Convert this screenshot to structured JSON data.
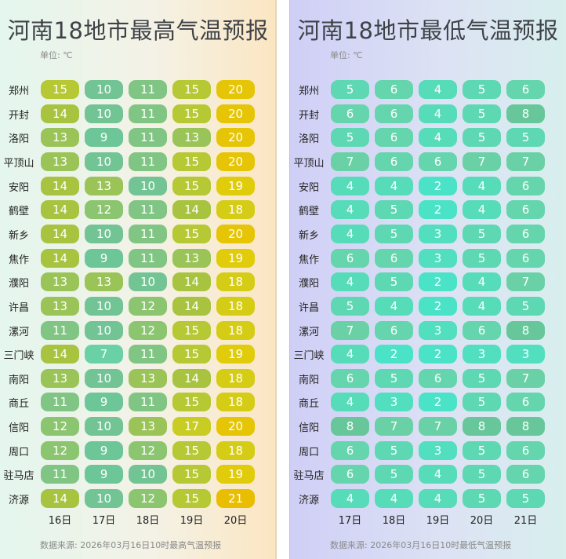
{
  "cities": [
    "郑州",
    "开封",
    "洛阳",
    "平顶山",
    "安阳",
    "鹤壁",
    "新乡",
    "焦作",
    "濮阳",
    "许昌",
    "漯河",
    "三门峡",
    "南阳",
    "商丘",
    "信阳",
    "周口",
    "驻马店",
    "济源"
  ],
  "unit_label": "单位: ℃",
  "charts": [
    {
      "id": "high",
      "title": "河南18地市最高气温预报",
      "dates": [
        "16日",
        "17日",
        "18日",
        "19日",
        "20日"
      ],
      "source": "数据来源: 2026年03月16日10时最高气温预报",
      "values": [
        [
          15,
          10,
          11,
          15,
          20
        ],
        [
          14,
          10,
          11,
          15,
          20
        ],
        [
          13,
          9,
          11,
          13,
          20
        ],
        [
          13,
          10,
          11,
          15,
          20
        ],
        [
          14,
          13,
          10,
          15,
          19
        ],
        [
          14,
          12,
          11,
          14,
          18
        ],
        [
          14,
          10,
          11,
          15,
          20
        ],
        [
          14,
          9,
          11,
          13,
          19
        ],
        [
          13,
          13,
          10,
          14,
          18
        ],
        [
          13,
          10,
          12,
          14,
          18
        ],
        [
          11,
          10,
          12,
          15,
          18
        ],
        [
          14,
          7,
          11,
          15,
          19
        ],
        [
          13,
          10,
          13,
          14,
          18
        ],
        [
          11,
          9,
          11,
          15,
          18
        ],
        [
          12,
          10,
          13,
          17,
          20
        ],
        [
          12,
          9,
          12,
          15,
          18
        ],
        [
          11,
          9,
          10,
          15,
          19
        ],
        [
          14,
          10,
          12,
          15,
          21
        ]
      ]
    },
    {
      "id": "low",
      "title": "河南18地市最低气温预报",
      "dates": [
        "17日",
        "18日",
        "19日",
        "20日",
        "21日"
      ],
      "source": "数据来源: 2026年03月16日10时最低气温预报",
      "values": [
        [
          5,
          6,
          4,
          5,
          6
        ],
        [
          6,
          6,
          4,
          5,
          8
        ],
        [
          5,
          6,
          4,
          5,
          5
        ],
        [
          7,
          6,
          6,
          7,
          7
        ],
        [
          4,
          4,
          2,
          4,
          6
        ],
        [
          4,
          5,
          2,
          4,
          6
        ],
        [
          4,
          5,
          3,
          5,
          6
        ],
        [
          6,
          6,
          3,
          5,
          6
        ],
        [
          4,
          5,
          2,
          4,
          7
        ],
        [
          5,
          4,
          2,
          4,
          5
        ],
        [
          7,
          6,
          3,
          6,
          8
        ],
        [
          4,
          2,
          2,
          3,
          3
        ],
        [
          6,
          5,
          6,
          5,
          7
        ],
        [
          4,
          3,
          2,
          5,
          6
        ],
        [
          8,
          7,
          7,
          8,
          8
        ],
        [
          6,
          5,
          3,
          5,
          6
        ],
        [
          6,
          5,
          4,
          5,
          6
        ],
        [
          4,
          4,
          4,
          5,
          5
        ]
      ]
    }
  ],
  "chart_data": [
    {
      "type": "heatmap",
      "title": "河南18地市最高气温预报",
      "unit": "℃",
      "categories": [
        "郑州",
        "开封",
        "洛阳",
        "平顶山",
        "安阳",
        "鹤壁",
        "新乡",
        "焦作",
        "濮阳",
        "许昌",
        "漯河",
        "三门峡",
        "南阳",
        "商丘",
        "信阳",
        "周口",
        "驻马店",
        "济源"
      ],
      "x": [
        "16日",
        "17日",
        "18日",
        "19日",
        "20日"
      ],
      "values": [
        [
          15,
          10,
          11,
          15,
          20
        ],
        [
          14,
          10,
          11,
          15,
          20
        ],
        [
          13,
          9,
          11,
          13,
          20
        ],
        [
          13,
          10,
          11,
          15,
          20
        ],
        [
          14,
          13,
          10,
          15,
          19
        ],
        [
          14,
          12,
          11,
          14,
          18
        ],
        [
          14,
          10,
          11,
          15,
          20
        ],
        [
          14,
          9,
          11,
          13,
          19
        ],
        [
          13,
          13,
          10,
          14,
          18
        ],
        [
          13,
          10,
          12,
          14,
          18
        ],
        [
          11,
          10,
          12,
          15,
          18
        ],
        [
          14,
          7,
          11,
          15,
          19
        ],
        [
          13,
          10,
          13,
          14,
          18
        ],
        [
          11,
          9,
          11,
          15,
          18
        ],
        [
          12,
          10,
          13,
          17,
          20
        ],
        [
          12,
          9,
          12,
          15,
          18
        ],
        [
          11,
          9,
          10,
          15,
          19
        ],
        [
          14,
          10,
          12,
          15,
          21
        ]
      ]
    },
    {
      "type": "heatmap",
      "title": "河南18地市最低气温预报",
      "unit": "℃",
      "categories": [
        "郑州",
        "开封",
        "洛阳",
        "平顶山",
        "安阳",
        "鹤壁",
        "新乡",
        "焦作",
        "濮阳",
        "许昌",
        "漯河",
        "三门峡",
        "南阳",
        "商丘",
        "信阳",
        "周口",
        "驻马店",
        "济源"
      ],
      "x": [
        "17日",
        "18日",
        "19日",
        "20日",
        "21日"
      ],
      "values": [
        [
          5,
          6,
          4,
          5,
          6
        ],
        [
          6,
          6,
          4,
          5,
          8
        ],
        [
          5,
          6,
          4,
          5,
          5
        ],
        [
          7,
          6,
          6,
          7,
          7
        ],
        [
          4,
          4,
          2,
          4,
          6
        ],
        [
          4,
          5,
          2,
          4,
          6
        ],
        [
          4,
          5,
          3,
          5,
          6
        ],
        [
          6,
          6,
          3,
          5,
          6
        ],
        [
          4,
          5,
          2,
          4,
          7
        ],
        [
          5,
          4,
          2,
          4,
          5
        ],
        [
          7,
          6,
          3,
          6,
          8
        ],
        [
          4,
          2,
          2,
          3,
          3
        ],
        [
          6,
          5,
          6,
          5,
          7
        ],
        [
          4,
          3,
          2,
          5,
          6
        ],
        [
          8,
          7,
          7,
          8,
          8
        ],
        [
          6,
          5,
          3,
          5,
          6
        ],
        [
          6,
          5,
          4,
          5,
          6
        ],
        [
          4,
          4,
          4,
          5,
          5
        ]
      ]
    }
  ]
}
